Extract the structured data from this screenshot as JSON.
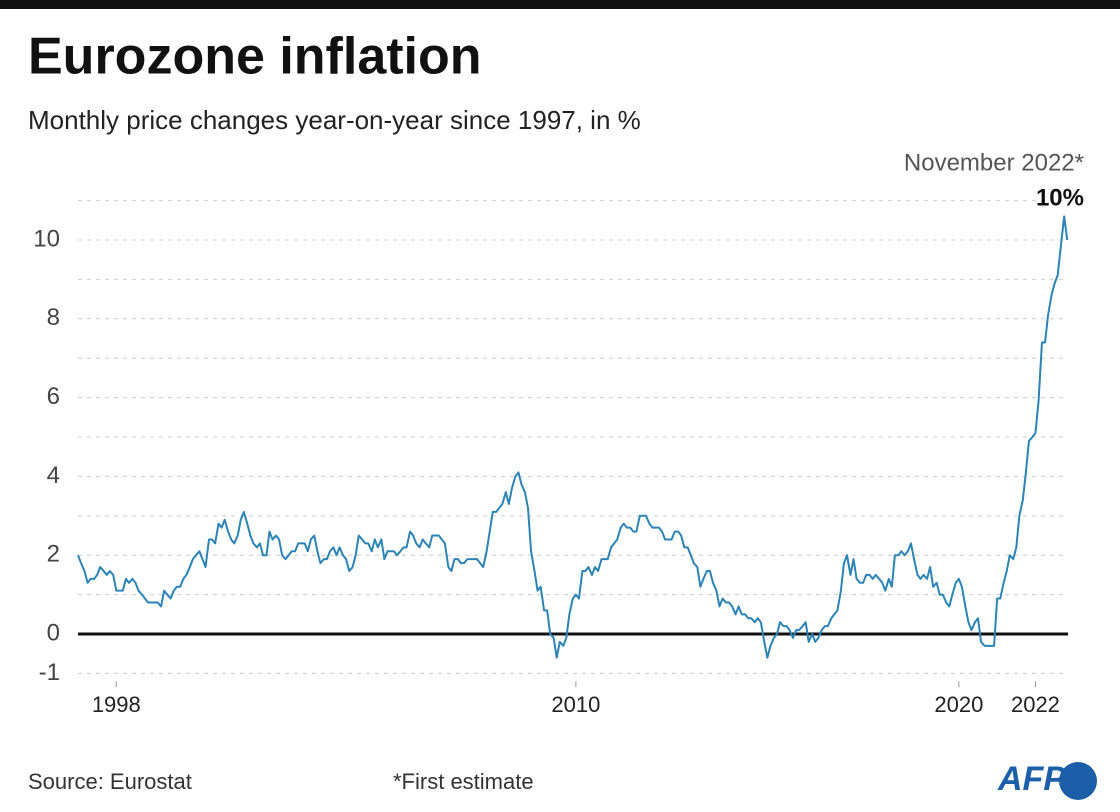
{
  "chart_data": {
    "type": "line",
    "title": "Eurozone inflation",
    "subtitle": "Monthly price changes year-on-year since 1997, in %",
    "annotation": "November 2022*",
    "annotation_value": {
      "value": 10,
      "label": "10%"
    },
    "source": "Source: Eurostat",
    "note": "*First estimate",
    "logo": "AFP",
    "xlim": [
      1997,
      2022.85
    ],
    "xticks": [
      1998,
      2010,
      2020,
      2022
    ],
    "ylim": [
      -1.2,
      11
    ],
    "yticks": [
      -1,
      0,
      2,
      4,
      6,
      8,
      10
    ],
    "minor_yticks": [
      1,
      3,
      5,
      7,
      9,
      11
    ],
    "grid": true,
    "zero_line": true,
    "series": [
      {
        "name": "Inflation",
        "color": "#2b84b5",
        "x": [
          1997.0,
          1997.08,
          1997.17,
          1997.25,
          1997.33,
          1997.42,
          1997.5,
          1997.58,
          1997.67,
          1997.75,
          1997.83,
          1997.92,
          1998.0,
          1998.08,
          1998.17,
          1998.25,
          1998.33,
          1998.42,
          1998.5,
          1998.58,
          1998.67,
          1998.75,
          1998.83,
          1998.92,
          1999.0,
          1999.08,
          1999.17,
          1999.25,
          1999.33,
          1999.42,
          1999.5,
          1999.58,
          1999.67,
          1999.75,
          1999.83,
          1999.92,
          2000.0,
          2000.08,
          2000.17,
          2000.25,
          2000.33,
          2000.42,
          2000.5,
          2000.58,
          2000.67,
          2000.75,
          2000.83,
          2000.92,
          2001.0,
          2001.08,
          2001.17,
          2001.25,
          2001.33,
          2001.42,
          2001.5,
          2001.58,
          2001.67,
          2001.75,
          2001.83,
          2001.92,
          2002.0,
          2002.08,
          2002.17,
          2002.25,
          2002.33,
          2002.42,
          2002.5,
          2002.58,
          2002.67,
          2002.75,
          2002.83,
          2002.92,
          2003.0,
          2003.08,
          2003.17,
          2003.25,
          2003.33,
          2003.42,
          2003.5,
          2003.58,
          2003.67,
          2003.75,
          2003.83,
          2003.92,
          2004.0,
          2004.08,
          2004.17,
          2004.25,
          2004.33,
          2004.42,
          2004.5,
          2004.58,
          2004.67,
          2004.75,
          2004.83,
          2004.92,
          2005.0,
          2005.08,
          2005.17,
          2005.25,
          2005.33,
          2005.42,
          2005.5,
          2005.58,
          2005.67,
          2005.75,
          2005.83,
          2005.92,
          2006.0,
          2006.08,
          2006.17,
          2006.25,
          2006.33,
          2006.42,
          2006.5,
          2006.58,
          2006.67,
          2006.75,
          2006.83,
          2006.92,
          2007.0,
          2007.08,
          2007.17,
          2007.25,
          2007.33,
          2007.42,
          2007.5,
          2007.58,
          2007.67,
          2007.75,
          2007.83,
          2007.92,
          2008.0,
          2008.08,
          2008.17,
          2008.25,
          2008.33,
          2008.42,
          2008.5,
          2008.58,
          2008.67,
          2008.75,
          2008.83,
          2008.92,
          2009.0,
          2009.08,
          2009.17,
          2009.25,
          2009.33,
          2009.42,
          2009.5,
          2009.58,
          2009.67,
          2009.75,
          2009.83,
          2009.92,
          2010.0,
          2010.08,
          2010.17,
          2010.25,
          2010.33,
          2010.42,
          2010.5,
          2010.58,
          2010.67,
          2010.75,
          2010.83,
          2010.92,
          2011.0,
          2011.08,
          2011.17,
          2011.25,
          2011.33,
          2011.42,
          2011.5,
          2011.58,
          2011.67,
          2011.75,
          2011.83,
          2011.92,
          2012.0,
          2012.08,
          2012.17,
          2012.25,
          2012.33,
          2012.42,
          2012.5,
          2012.58,
          2012.67,
          2012.75,
          2012.83,
          2012.92,
          2013.0,
          2013.08,
          2013.17,
          2013.25,
          2013.33,
          2013.42,
          2013.5,
          2013.58,
          2013.67,
          2013.75,
          2013.83,
          2013.92,
          2014.0,
          2014.08,
          2014.17,
          2014.25,
          2014.33,
          2014.42,
          2014.5,
          2014.58,
          2014.67,
          2014.75,
          2014.83,
          2014.92,
          2015.0,
          2015.08,
          2015.17,
          2015.25,
          2015.33,
          2015.42,
          2015.5,
          2015.58,
          2015.67,
          2015.75,
          2015.83,
          2015.92,
          2016.0,
          2016.08,
          2016.17,
          2016.25,
          2016.33,
          2016.42,
          2016.5,
          2016.58,
          2016.67,
          2016.75,
          2016.83,
          2016.92,
          2017.0,
          2017.08,
          2017.17,
          2017.25,
          2017.33,
          2017.42,
          2017.5,
          2017.58,
          2017.67,
          2017.75,
          2017.83,
          2017.92,
          2018.0,
          2018.08,
          2018.17,
          2018.25,
          2018.33,
          2018.42,
          2018.5,
          2018.58,
          2018.67,
          2018.75,
          2018.83,
          2018.92,
          2019.0,
          2019.08,
          2019.17,
          2019.25,
          2019.33,
          2019.42,
          2019.5,
          2019.58,
          2019.67,
          2019.75,
          2019.83,
          2019.92,
          2020.0,
          2020.08,
          2020.17,
          2020.25,
          2020.33,
          2020.42,
          2020.5,
          2020.58,
          2020.67,
          2020.75,
          2020.83,
          2020.92,
          2021.0,
          2021.08,
          2021.17,
          2021.25,
          2021.33,
          2021.42,
          2021.5,
          2021.58,
          2021.67,
          2021.75,
          2021.83,
          2021.92,
          2022.0,
          2022.08,
          2022.17,
          2022.25,
          2022.33,
          2022.42,
          2022.5,
          2022.58,
          2022.67,
          2022.75,
          2022.83
        ],
        "values": [
          2.0,
          1.8,
          1.6,
          1.3,
          1.4,
          1.4,
          1.5,
          1.7,
          1.6,
          1.5,
          1.6,
          1.5,
          1.1,
          1.1,
          1.1,
          1.4,
          1.3,
          1.4,
          1.3,
          1.1,
          1.0,
          0.9,
          0.8,
          0.8,
          0.8,
          0.8,
          0.7,
          1.1,
          1.0,
          0.9,
          1.1,
          1.2,
          1.2,
          1.4,
          1.5,
          1.7,
          1.9,
          2.0,
          2.1,
          1.9,
          1.7,
          2.4,
          2.4,
          2.3,
          2.8,
          2.7,
          2.9,
          2.6,
          2.4,
          2.3,
          2.5,
          2.9,
          3.1,
          2.8,
          2.5,
          2.3,
          2.2,
          2.3,
          2.0,
          2.0,
          2.6,
          2.4,
          2.5,
          2.4,
          2.0,
          1.9,
          2.0,
          2.1,
          2.1,
          2.3,
          2.3,
          2.3,
          2.1,
          2.4,
          2.5,
          2.1,
          1.8,
          1.9,
          1.9,
          2.1,
          2.2,
          2.0,
          2.2,
          2.0,
          1.9,
          1.6,
          1.7,
          2.0,
          2.5,
          2.4,
          2.3,
          2.3,
          2.1,
          2.4,
          2.2,
          2.4,
          1.9,
          2.1,
          2.1,
          2.1,
          2.0,
          2.1,
          2.2,
          2.2,
          2.6,
          2.5,
          2.3,
          2.2,
          2.4,
          2.3,
          2.2,
          2.5,
          2.5,
          2.5,
          2.4,
          2.3,
          1.7,
          1.6,
          1.9,
          1.9,
          1.8,
          1.8,
          1.9,
          1.9,
          1.9,
          1.9,
          1.8,
          1.7,
          2.1,
          2.6,
          3.1,
          3.1,
          3.2,
          3.3,
          3.6,
          3.3,
          3.7,
          4.0,
          4.1,
          3.8,
          3.6,
          3.2,
          2.1,
          1.6,
          1.1,
          1.2,
          0.6,
          0.6,
          0.0,
          -0.1,
          -0.6,
          -0.2,
          -0.3,
          -0.1,
          0.5,
          0.9,
          1.0,
          0.9,
          1.6,
          1.6,
          1.7,
          1.5,
          1.7,
          1.6,
          1.9,
          1.9,
          1.9,
          2.2,
          2.3,
          2.4,
          2.7,
          2.8,
          2.7,
          2.7,
          2.6,
          2.6,
          3.0,
          3.0,
          3.0,
          2.8,
          2.7,
          2.7,
          2.7,
          2.6,
          2.4,
          2.4,
          2.4,
          2.6,
          2.6,
          2.5,
          2.2,
          2.2,
          2.0,
          1.8,
          1.7,
          1.2,
          1.4,
          1.6,
          1.6,
          1.3,
          1.1,
          0.7,
          0.9,
          0.8,
          0.8,
          0.7,
          0.5,
          0.7,
          0.5,
          0.5,
          0.4,
          0.4,
          0.3,
          0.4,
          0.3,
          -0.2,
          -0.6,
          -0.3,
          -0.1,
          0.0,
          0.3,
          0.2,
          0.2,
          0.1,
          -0.1,
          0.1,
          0.1,
          0.2,
          0.3,
          -0.2,
          0.0,
          -0.2,
          -0.1,
          0.1,
          0.2,
          0.2,
          0.4,
          0.5,
          0.6,
          1.1,
          1.8,
          2.0,
          1.5,
          1.9,
          1.4,
          1.3,
          1.3,
          1.5,
          1.5,
          1.4,
          1.5,
          1.4,
          1.3,
          1.1,
          1.4,
          1.2,
          2.0,
          2.0,
          2.1,
          2.0,
          2.1,
          2.3,
          1.9,
          1.5,
          1.4,
          1.5,
          1.4,
          1.7,
          1.2,
          1.3,
          1.0,
          1.0,
          0.8,
          0.7,
          1.0,
          1.3,
          1.4,
          1.2,
          0.7,
          0.3,
          0.1,
          0.3,
          0.4,
          -0.2,
          -0.3,
          -0.3,
          -0.3,
          -0.3,
          0.9,
          0.9,
          1.3,
          1.6,
          2.0,
          1.9,
          2.2,
          3.0,
          3.4,
          4.1,
          4.9,
          5.0,
          5.1,
          5.9,
          7.4,
          7.4,
          8.1,
          8.6,
          8.9,
          9.1,
          9.9,
          10.6,
          10.0
        ]
      }
    ]
  }
}
